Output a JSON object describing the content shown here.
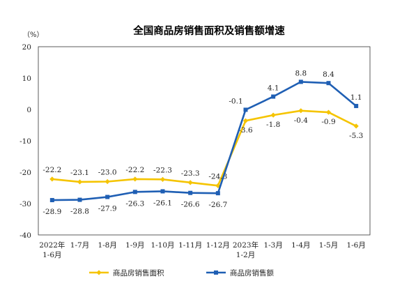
{
  "chart_data": {
    "type": "line",
    "title": "全国商品房销售面积及销售额增速",
    "unit": "（%）",
    "ylim": [
      -40,
      20
    ],
    "yticks": [
      20,
      10,
      0,
      -10,
      -20,
      -30,
      -40
    ],
    "ytick_labels": [
      "20",
      "10",
      "0",
      "-10",
      "-20",
      "-30",
      "-40"
    ],
    "categories": [
      [
        "2022年",
        "1-6月"
      ],
      [
        "1-7月"
      ],
      [
        "1-8月"
      ],
      [
        "1-9月"
      ],
      [
        "1-10月"
      ],
      [
        "1-11月"
      ],
      [
        "1-12月"
      ],
      [
        "2023年",
        "1-2月"
      ],
      [
        "1-3月"
      ],
      [
        "1-4月"
      ],
      [
        "1-5月"
      ],
      [
        "1-6月"
      ]
    ],
    "series": [
      {
        "name": "商品房销售面积",
        "color": "#f5c400",
        "values": [
          -22.2,
          -23.1,
          -23.0,
          -22.2,
          -22.3,
          -23.3,
          -24.3,
          -3.6,
          -1.8,
          -0.4,
          -0.9,
          -5.3
        ],
        "labels": [
          "-22.2",
          "-23.1",
          "-23.0",
          "-22.2",
          "-22.3",
          "-23.3",
          "-24.3",
          "-3.6",
          "-1.8",
          "-0.4",
          "-0.9",
          "-5.3"
        ]
      },
      {
        "name": "商品房销售额",
        "color": "#1f5fb4",
        "values": [
          -28.9,
          -28.8,
          -27.9,
          -26.3,
          -26.1,
          -26.6,
          -26.7,
          -0.1,
          4.1,
          8.8,
          8.4,
          1.1
        ],
        "labels": [
          "-28.9",
          "-28.8",
          "-27.9",
          "-26.3",
          "-26.1",
          "-26.6",
          "-26.7",
          "-0.1",
          "4.1",
          "8.8",
          "8.4",
          "1.1"
        ]
      }
    ],
    "legend_position": "bottom",
    "grid": false
  }
}
